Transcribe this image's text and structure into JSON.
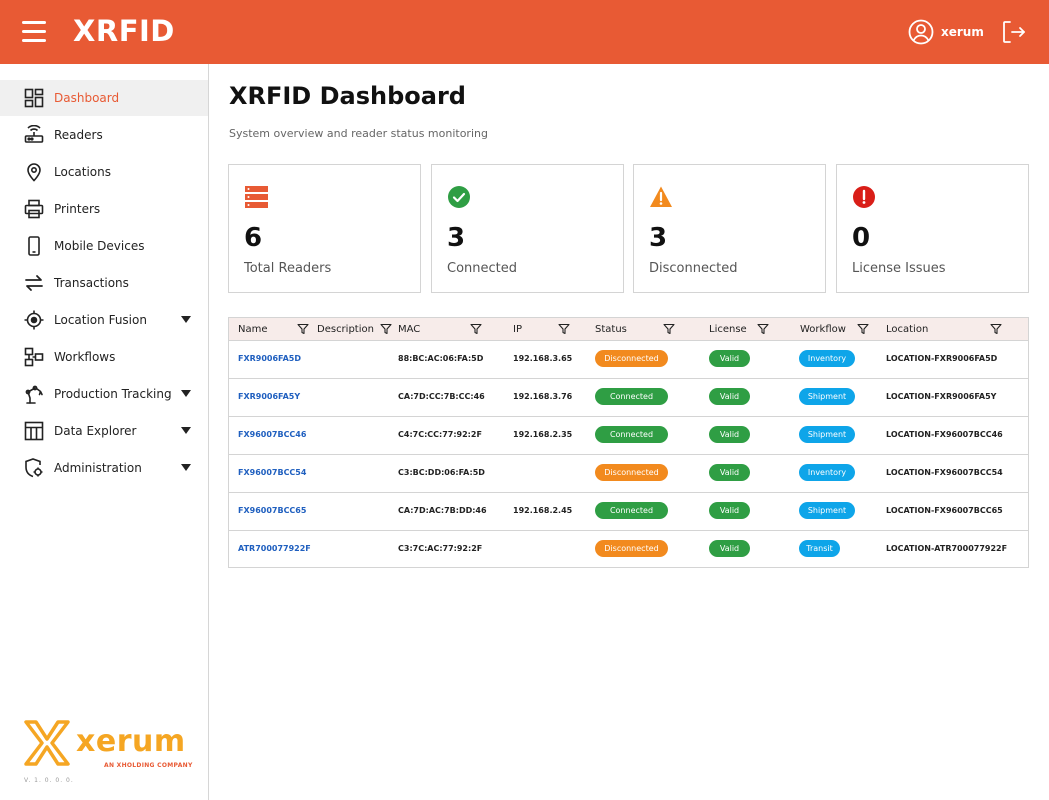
{
  "header": {
    "title": "XRFID",
    "username": "xerum"
  },
  "sidebar": {
    "items": [
      {
        "label": "Dashboard",
        "icon": "dashboard-icon",
        "active": true,
        "expandable": false
      },
      {
        "label": "Readers",
        "icon": "router-icon",
        "active": false,
        "expandable": false
      },
      {
        "label": "Locations",
        "icon": "location-pin-icon",
        "active": false,
        "expandable": false
      },
      {
        "label": "Printers",
        "icon": "printer-icon",
        "active": false,
        "expandable": false
      },
      {
        "label": "Mobile Devices",
        "icon": "mobile-icon",
        "active": false,
        "expandable": false
      },
      {
        "label": "Transactions",
        "icon": "swap-icon",
        "active": false,
        "expandable": false
      },
      {
        "label": "Location Fusion",
        "icon": "gps-target-icon",
        "active": false,
        "expandable": true
      },
      {
        "label": "Workflows",
        "icon": "workflow-icon",
        "active": false,
        "expandable": false
      },
      {
        "label": "Production Tracking",
        "icon": "robot-arm-icon",
        "active": false,
        "expandable": true
      },
      {
        "label": "Data Explorer",
        "icon": "table-icon",
        "active": false,
        "expandable": true
      },
      {
        "label": "Administration",
        "icon": "shield-settings-icon",
        "active": false,
        "expandable": true
      }
    ],
    "logo_text": "xerum",
    "logo_subtext": "AN XHOLDING COMPANY",
    "version": "V. 1. 0. 0. 0."
  },
  "main": {
    "title": "XRFID Dashboard",
    "subtitle": "System overview and reader status monitoring",
    "cards": [
      {
        "value": "6",
        "label": "Total Readers",
        "icon": "server-stack-icon",
        "color": "#E85A34"
      },
      {
        "value": "3",
        "label": "Connected",
        "icon": "check-circle-icon",
        "color": "#2f9e44"
      },
      {
        "value": "3",
        "label": "Disconnected",
        "icon": "warning-icon",
        "color": "#F28A1E"
      },
      {
        "value": "0",
        "label": "License Issues",
        "icon": "alert-circle-icon",
        "color": "#D91E18"
      }
    ]
  },
  "table": {
    "columns": [
      "Name",
      "Description",
      "MAC",
      "IP",
      "Status",
      "License",
      "Workflow",
      "Location"
    ],
    "rows": [
      {
        "name": "FXR9006FA5D",
        "description": "",
        "mac": "88:BC:AC:06:FA:5D",
        "ip": "192.168.3.65",
        "status": "Disconnected",
        "license": "Valid",
        "workflow": "Inventory",
        "location": "LOCATION-FXR9006FA5D"
      },
      {
        "name": "FXR9006FA5Y",
        "description": "",
        "mac": "CA:7D:CC:7B:CC:46",
        "ip": "192.168.3.76",
        "status": "Connected",
        "license": "Valid",
        "workflow": "Shipment",
        "location": "LOCATION-FXR9006FA5Y"
      },
      {
        "name": "FX96007BCC46",
        "description": "",
        "mac": "C4:7C:CC:77:92:2F",
        "ip": "192.168.2.35",
        "status": "Connected",
        "license": "Valid",
        "workflow": "Shipment",
        "location": "LOCATION-FX96007BCC46"
      },
      {
        "name": "FX96007BCC54",
        "description": "",
        "mac": "C3:BC:DD:06:FA:5D",
        "ip": "",
        "status": "Disconnected",
        "license": "Valid",
        "workflow": "Inventory",
        "location": "LOCATION-FX96007BCC54"
      },
      {
        "name": "FX96007BCC65",
        "description": "",
        "mac": "CA:7D:AC:7B:DD:46",
        "ip": "192.168.2.45",
        "status": "Connected",
        "license": "Valid",
        "workflow": "Shipment",
        "location": "LOCATION-FX96007BCC65"
      },
      {
        "name": "ATR700077922F",
        "description": "",
        "mac": "C3:7C:AC:77:92:2F",
        "ip": "",
        "status": "Disconnected",
        "license": "Valid",
        "workflow": "Transit",
        "location": "LOCATION-ATR700077922F"
      }
    ]
  },
  "colors": {
    "brand": "#E85A34",
    "connected": "#2f9e44",
    "disconnected": "#F28A1E",
    "workflow": "#0ea5e9",
    "logo": "#F5A623"
  }
}
